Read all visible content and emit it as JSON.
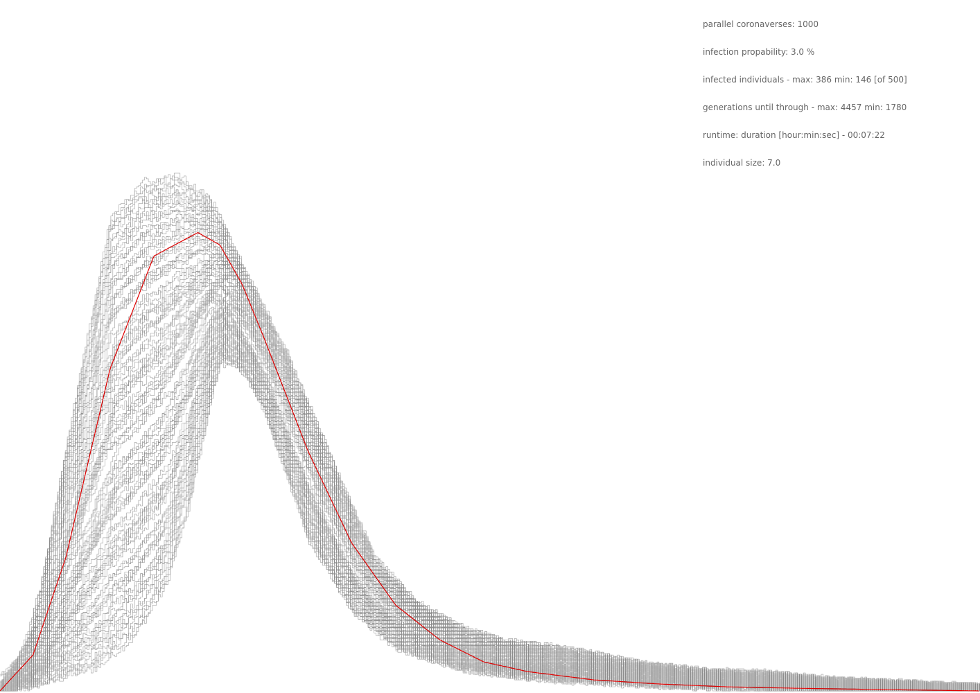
{
  "stats": {
    "universes": "parallel coronaverses: 1000",
    "probability": "infection propability: 3.0 %",
    "infected": "infected individuals - max: 386 min: 146 [of 500]",
    "generations": "generations until through - max: 4457 min: 1780",
    "runtime": "runtime: duration [hour:min:sec] - 00:07:22",
    "size": "individual size: 7.0"
  },
  "colors": {
    "background": "#ffffff",
    "runs": "#8c8c8c",
    "mean": "#e00000",
    "text": "#666666"
  },
  "chart_data": {
    "type": "line",
    "title": "",
    "xlabel": "",
    "ylabel": "",
    "xlim": [
      0,
      4457
    ],
    "ylim": [
      0,
      386
    ],
    "grid": false,
    "legend": "none",
    "series": [
      {
        "role": "mean",
        "x": [
          0,
          150,
          300,
          500,
          700,
          900,
          1000,
          1100,
          1200,
          1400,
          1600,
          1800,
          2000,
          2200,
          2400,
          2700,
          3000,
          3300,
          3600,
          4000,
          4457
        ],
        "values": [
          0,
          26,
          97,
          233,
          315,
          332,
          323,
          295,
          256,
          174,
          107,
          62,
          37,
          21,
          14,
          8,
          5,
          3,
          2,
          1,
          0
        ]
      },
      {
        "role": "envelope-upper",
        "x": [
          0,
          150,
          300,
          500,
          650,
          800,
          950,
          1100,
          1300,
          1500,
          1700,
          1900,
          2100,
          2300,
          2600,
          2900,
          3200,
          3500,
          3800,
          4100,
          4457
        ],
        "values": [
          0,
          45,
          185,
          357,
          383,
          386,
          364,
          312,
          250,
          175,
          99,
          65,
          47,
          37,
          31,
          21,
          15,
          13,
          8,
          6,
          3
        ]
      },
      {
        "role": "envelope-lower",
        "x": [
          0,
          300,
          450,
          600,
          750,
          850,
          950,
          1000,
          1100,
          1200,
          1400,
          1600,
          1800,
          2100,
          2500,
          3000,
          3500,
          4457
        ],
        "values": [
          0,
          3,
          5,
          23,
          62,
          118,
          198,
          234,
          228,
          199,
          106,
          54,
          29,
          14,
          7,
          3,
          1,
          0
        ]
      }
    ]
  }
}
